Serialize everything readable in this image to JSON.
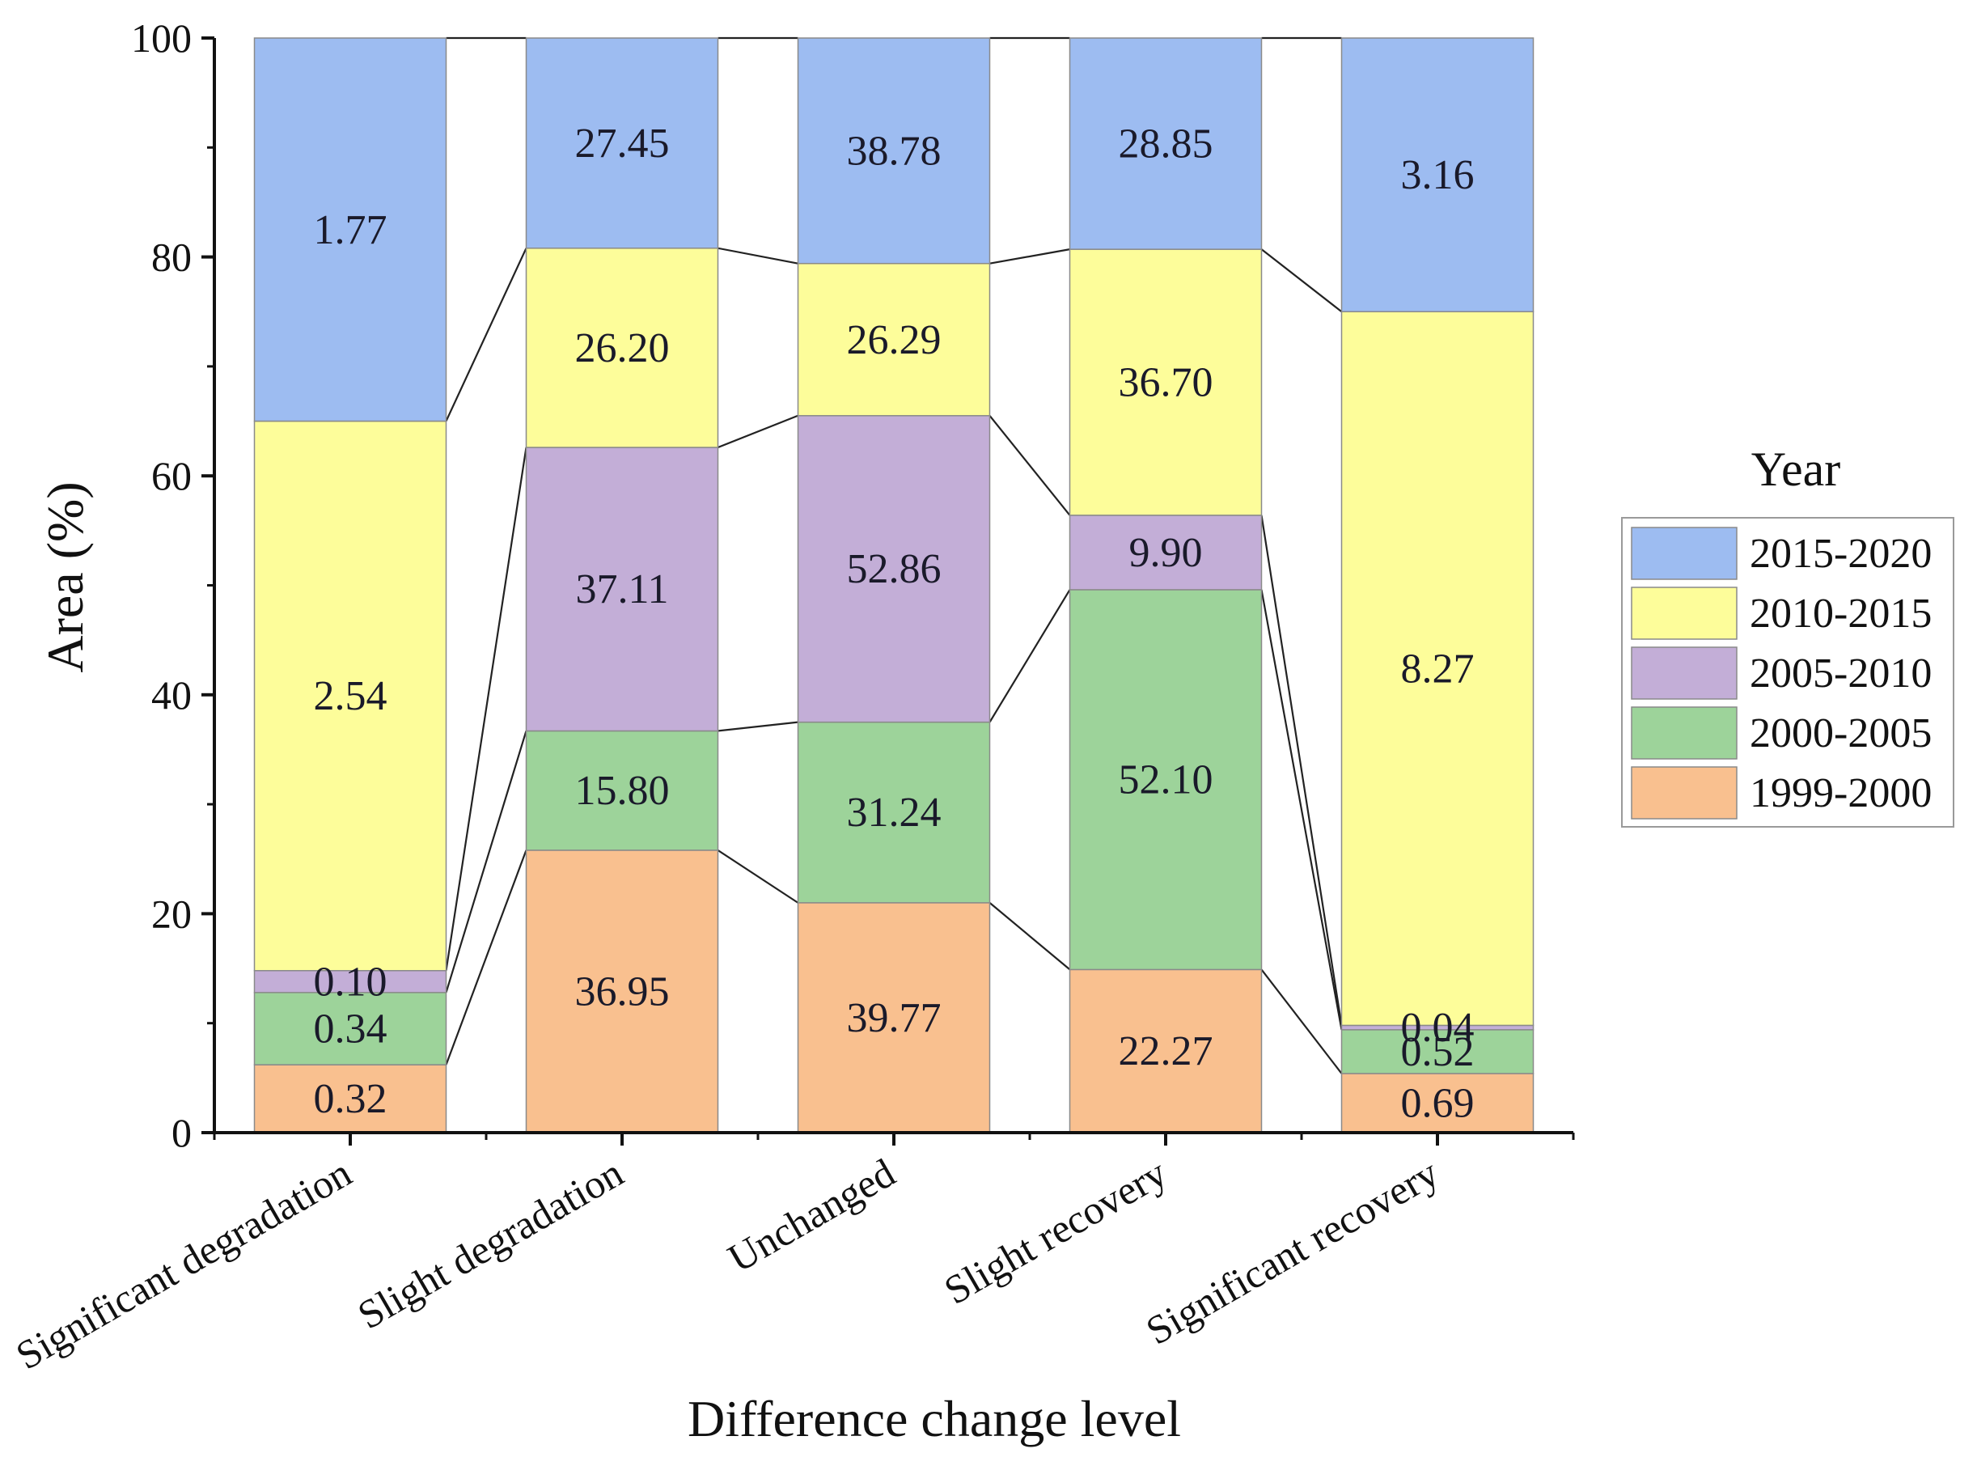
{
  "chart_data": {
    "type": "bar",
    "stacked": true,
    "title": "",
    "xlabel": "Difference change level",
    "ylabel": "Area (%)",
    "ylim": [
      0,
      100
    ],
    "yticks": [
      0,
      20,
      40,
      60,
      80,
      100
    ],
    "categories": [
      "Significant degradation",
      "Slight degradation",
      "Unchanged",
      "Slight recovery",
      "Significant recovery"
    ],
    "legend": {
      "title": "Year",
      "position": "right"
    },
    "series": [
      {
        "name": "1999-2000",
        "color": "#f9c08f",
        "values": [
          6.2,
          25.8,
          21.0,
          14.9,
          5.4
        ],
        "labels": [
          "0.32",
          "36.95",
          "39.77",
          "22.27",
          "0.69"
        ]
      },
      {
        "name": "2000-2005",
        "color": "#9dd39a",
        "values": [
          6.6,
          10.9,
          16.5,
          34.7,
          4.0
        ],
        "labels": [
          "0.34",
          "15.80",
          "31.24",
          "52.10",
          "0.52"
        ]
      },
      {
        "name": "2005-2010",
        "color": "#c3aed7",
        "values": [
          2.0,
          25.9,
          28.0,
          6.8,
          0.4
        ],
        "labels": [
          "0.10",
          "37.11",
          "52.86",
          "9.90",
          "0.04"
        ]
      },
      {
        "name": "2010-2015",
        "color": "#fdfd9a",
        "values": [
          50.2,
          18.2,
          13.9,
          24.3,
          65.2
        ],
        "labels": [
          "2.54",
          "26.20",
          "26.29",
          "36.70",
          "8.27"
        ]
      },
      {
        "name": "2015-2020",
        "color": "#9dbcf1",
        "values": [
          35.0,
          19.2,
          20.6,
          19.3,
          25.0
        ],
        "labels": [
          "1.77",
          "27.45",
          "38.78",
          "28.85",
          "3.16"
        ]
      }
    ]
  }
}
